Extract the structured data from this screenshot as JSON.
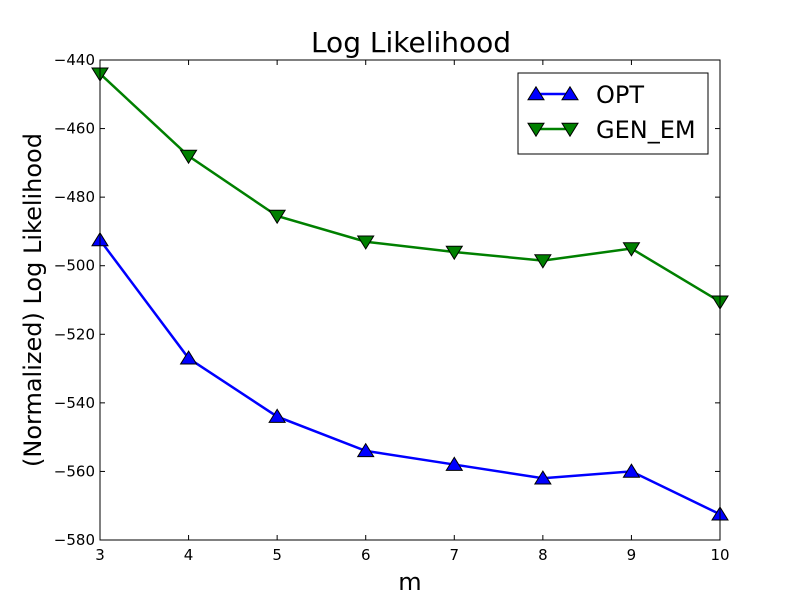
{
  "chart_data": {
    "type": "line",
    "title": "Log Likelihood",
    "xlabel": "m",
    "ylabel": "(Normalized) Log Likelihood",
    "xlim": [
      3,
      10
    ],
    "ylim": [
      -580,
      -440
    ],
    "x": [
      3,
      4,
      5,
      6,
      7,
      8,
      9,
      10
    ],
    "xticks": [
      3,
      4,
      5,
      6,
      7,
      8,
      9,
      10
    ],
    "yticks": [
      -440,
      -460,
      -480,
      -500,
      -520,
      -540,
      -560,
      -580
    ],
    "grid": false,
    "legend_position": "top-right",
    "series": [
      {
        "name": "OPT",
        "color": "#0000ff",
        "marker": "triangle-up",
        "values": [
          -492.5,
          -527,
          -544,
          -554,
          -558,
          -562,
          -560,
          -572.5
        ]
      },
      {
        "name": "GEN_EM",
        "color": "#008000",
        "marker": "triangle-down",
        "values": [
          -444,
          -468,
          -485.5,
          -493,
          -496,
          -498.5,
          -495,
          -510.5
        ]
      }
    ]
  }
}
